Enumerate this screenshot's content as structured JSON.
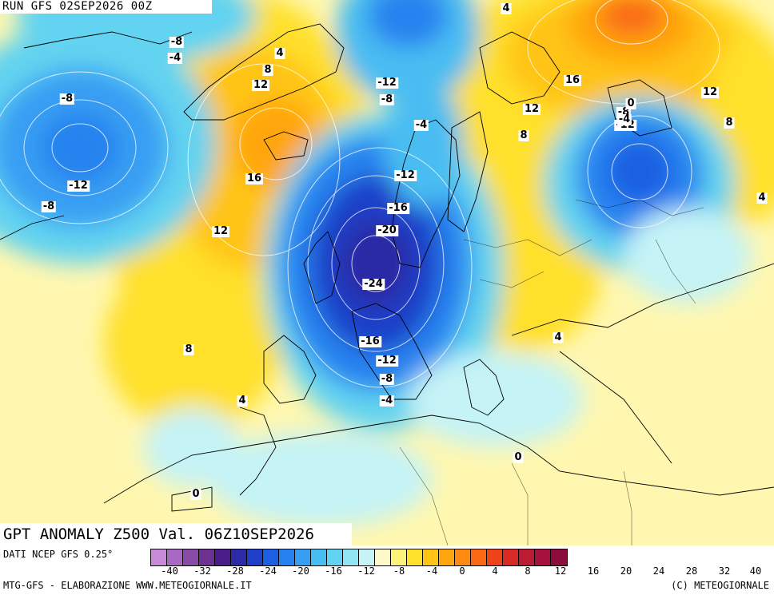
{
  "header": {
    "run": "RUN GFS 02SEP2026 00Z"
  },
  "title": "GPT ANOMALY Z500 Val. 06Z10SEP2026",
  "source": "DATI NCEP GFS 0.25°",
  "footer": {
    "left": "MTG-GFS - ELABORAZIONE WWW.METEOGIORNALE.IT",
    "right": "(C) METEOGIORNALE"
  },
  "legend": {
    "colors": [
      "#c68ad8",
      "#a869c4",
      "#8a4aa8",
      "#6d3192",
      "#4a1e8a",
      "#2c2aa5",
      "#1f3fc8",
      "#1d5fe2",
      "#2782ef",
      "#379ff3",
      "#48bdf2",
      "#62d3f0",
      "#92e6f3",
      "#c5f3f6",
      "#fff9c8",
      "#fff27a",
      "#ffe02a",
      "#ffc414",
      "#ffa60e",
      "#ff8a12",
      "#fa6a14",
      "#ef4218",
      "#d82a24",
      "#bd1a34",
      "#a5123e",
      "#8c0c3c"
    ],
    "ticks": [
      "-40",
      "-32",
      "-28",
      "-24",
      "-20",
      "-16",
      "-12",
      "-8",
      "-4",
      "0",
      "4",
      "8",
      "12",
      "16",
      "20",
      "24",
      "28",
      "32",
      "40"
    ]
  },
  "contour_labels": [
    {
      "t": "-8"
    },
    {
      "t": "-4"
    },
    {
      "t": "4"
    },
    {
      "t": "8"
    },
    {
      "t": "12"
    },
    {
      "t": "-8"
    },
    {
      "t": "-12"
    },
    {
      "t": "-8"
    },
    {
      "t": "-4"
    },
    {
      "t": "16"
    },
    {
      "t": "12"
    },
    {
      "t": "-12"
    },
    {
      "t": "-8"
    },
    {
      "t": "-8"
    },
    {
      "t": "-12"
    },
    {
      "t": "-16"
    },
    {
      "t": "-20"
    },
    {
      "t": "-24"
    },
    {
      "t": "-16"
    },
    {
      "t": "-12"
    },
    {
      "t": "-8"
    },
    {
      "t": "-4"
    },
    {
      "t": "8"
    },
    {
      "t": "4"
    },
    {
      "t": "0"
    },
    {
      "t": "4"
    },
    {
      "t": "0"
    },
    {
      "t": "16"
    },
    {
      "t": "12"
    },
    {
      "t": "8"
    },
    {
      "t": "0"
    },
    {
      "t": "-4"
    },
    {
      "t": "-12"
    },
    {
      "t": "12"
    },
    {
      "t": "8"
    },
    {
      "t": "4"
    },
    {
      "t": "4"
    }
  ]
}
